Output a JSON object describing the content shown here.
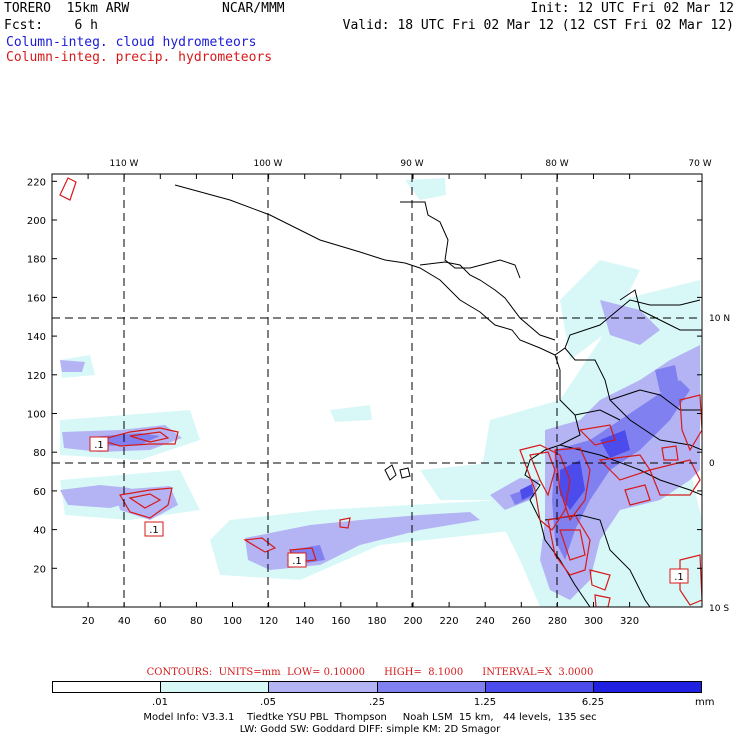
{
  "header": {
    "model": "TORERO  15km ARW",
    "center": "NCAR/MMM",
    "init": "Init: 12 UTC Fri 02 Mar 12",
    "fcst": "Fcst:    6 h",
    "valid": "Valid: 18 UTC Fri 02 Mar 12 (12 CST Fri 02 Mar 12)",
    "field1": "Column-integ. cloud hydrometeors",
    "field2": "Column-integ. precip. hydrometeors",
    "field1_color": "#1a1ad6",
    "field2_color": "#d61a1a"
  },
  "map": {
    "top_lon_labels": [
      "110 W",
      "100 W",
      "90 W",
      "80 W",
      "70 W"
    ],
    "right_lat_labels": [
      "10 N",
      "0",
      "10 S"
    ],
    "x_ticks": [
      "20",
      "40",
      "60",
      "80",
      "100",
      "120",
      "140",
      "160",
      "180",
      "200",
      "220",
      "240",
      "260",
      "280",
      "300",
      "320"
    ],
    "y_ticks": [
      "20",
      "40",
      "60",
      "80",
      "100",
      "120",
      "140",
      "160",
      "180",
      "200",
      "220"
    ],
    "contour_labels": [
      ".1",
      ".1",
      ".1",
      ".1"
    ]
  },
  "contours_line": "CONTOURS:  UNITS=mm  LOW= 0.10000      HIGH=  8.1000      INTERVAL=X  3.0000",
  "colorbar": {
    "colors": [
      "#ffffff",
      "#d8f8f8",
      "#b4b4f4",
      "#8080f0",
      "#4c4cec",
      "#2020e0"
    ],
    "labels": [
      ".01",
      ".05",
      ".25",
      "1.25",
      "6.25"
    ],
    "unit": "mm"
  },
  "info": {
    "line1": "Model Info: V3.3.1    Tiedtke YSU PBL  Thompson     Noah LSM  15 km,   44 levels,  135 sec",
    "line2": "LW: Godd SW: Goddard DIFF: simple KM: 2D Smagor"
  }
}
